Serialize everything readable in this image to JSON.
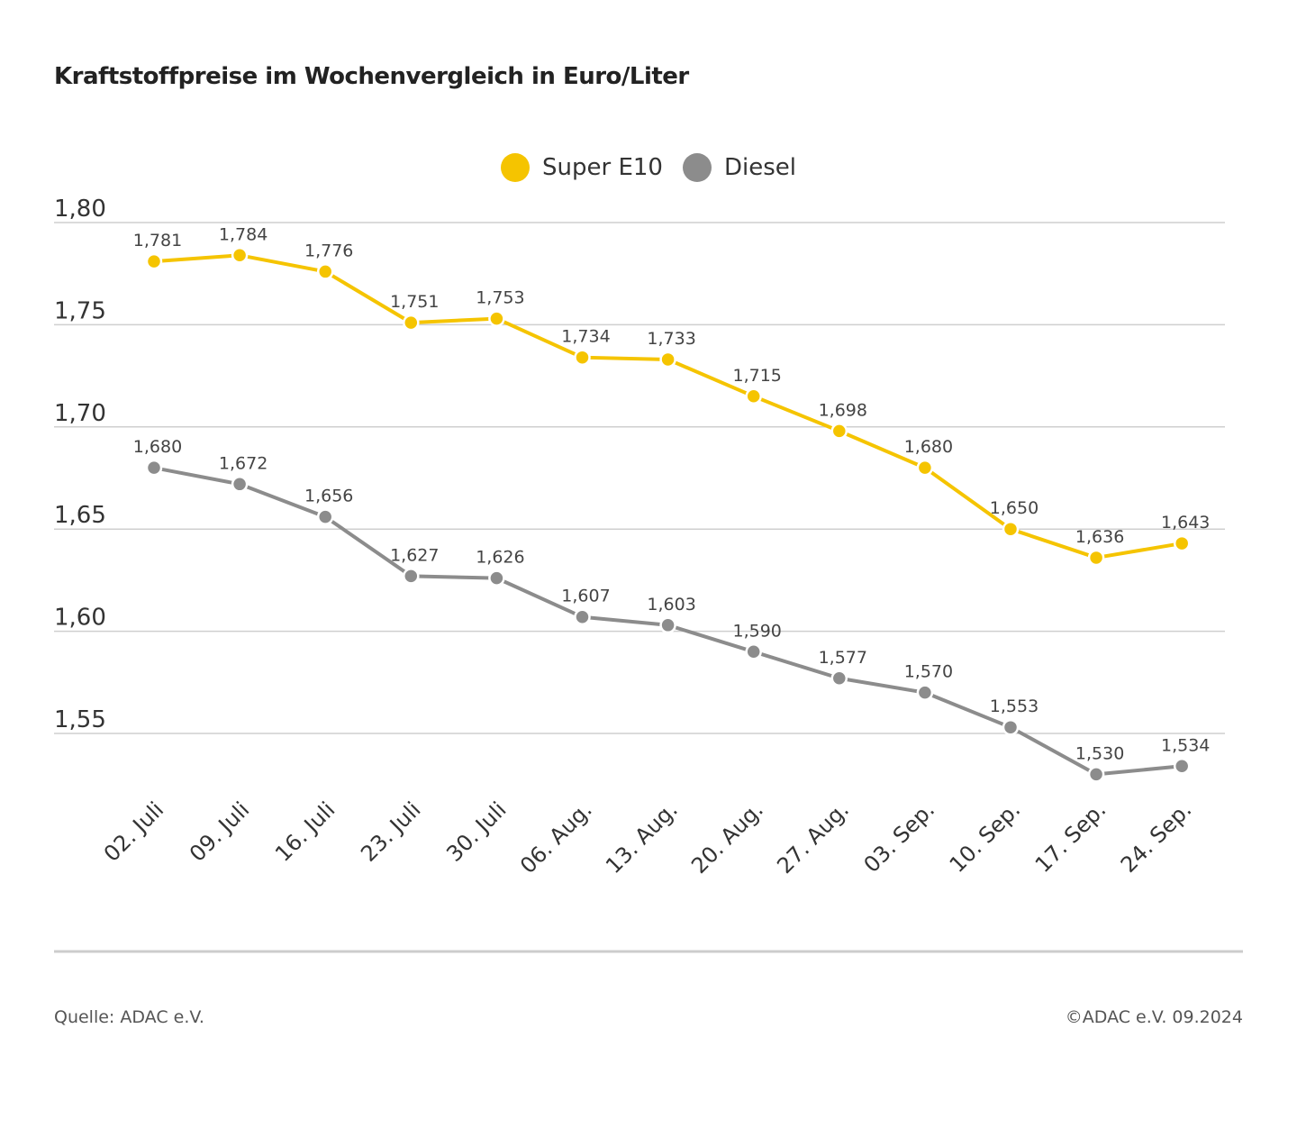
{
  "chart_data": {
    "type": "line",
    "title": "Kraftstoffpreise im Wochenvergleich in Euro/Liter",
    "xlabel": "",
    "ylabel": "",
    "categories": [
      "02. Juli",
      "09. Juli",
      "16. Juli",
      "23. Juli",
      "30. Juli",
      "06. Aug.",
      "13. Aug.",
      "20. Aug.",
      "27. Aug.",
      "03. Sep.",
      "10. Sep.",
      "17. Sep.",
      "24. Sep."
    ],
    "ylim": [
      1.55,
      1.8
    ],
    "yticks": [
      "1,80",
      "1,75",
      "1,70",
      "1,65",
      "1,60",
      "1,55"
    ],
    "grid": true,
    "legend_position": "top-center",
    "series": [
      {
        "name": "Super E10",
        "color": "#f5c400",
        "values": [
          1.781,
          1.784,
          1.776,
          1.751,
          1.753,
          1.734,
          1.733,
          1.715,
          1.698,
          1.68,
          1.65,
          1.636,
          1.643
        ],
        "labels": [
          "1,781",
          "1,784",
          "1,776",
          "1,751",
          "1,753",
          "1,734",
          "1,733",
          "1,715",
          "1,698",
          "1,680",
          "1,650",
          "1,636",
          "1,643"
        ]
      },
      {
        "name": "Diesel",
        "color": "#8c8c8c",
        "values": [
          1.68,
          1.672,
          1.656,
          1.627,
          1.626,
          1.607,
          1.603,
          1.59,
          1.577,
          1.57,
          1.553,
          1.53,
          1.534
        ],
        "labels": [
          "1,680",
          "1,672",
          "1,656",
          "1,627",
          "1,626",
          "1,607",
          "1,603",
          "1,590",
          "1,577",
          "1,570",
          "1,553",
          "1,530",
          "1,534"
        ]
      }
    ]
  },
  "footer": {
    "source": "Quelle: ADAC e.V.",
    "copyright": "©ADAC e.V. 09.2024"
  }
}
